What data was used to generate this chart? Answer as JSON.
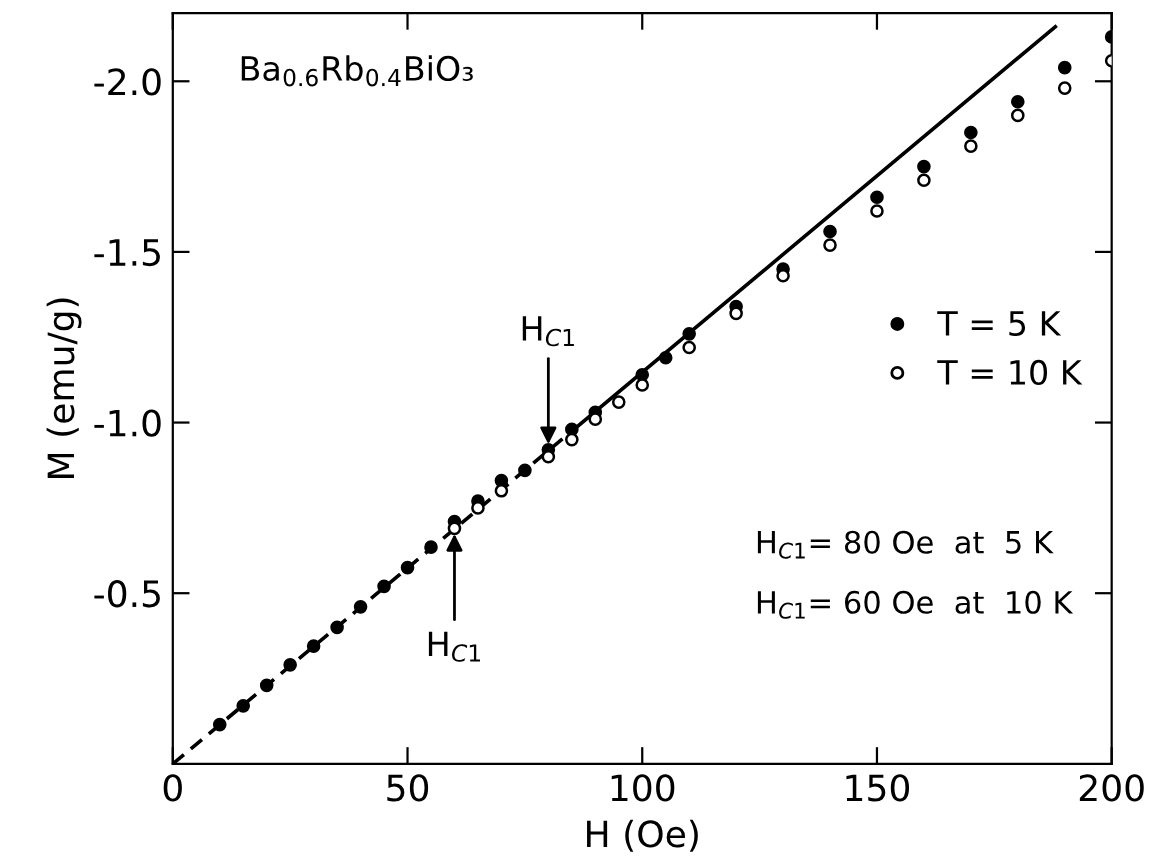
{
  "chart_data": {
    "type": "scatter",
    "xlabel": "H (Oe)",
    "ylabel": "M (emu/g)",
    "xlim": [
      0,
      200
    ],
    "ylim": [
      0,
      -2.2
    ],
    "xticks": [
      0,
      50,
      100,
      150,
      200
    ],
    "yticks": [
      -0.5,
      {
        "value": -1,
        "label": "-1.0"
      },
      -1.5,
      {
        "value": -2,
        "label": "-2.0"
      }
    ],
    "grid": false,
    "legend": "right",
    "series": [
      {
        "name": "T = 5 K",
        "marker": "circle",
        "color": "#000000",
        "x": [
          10,
          15,
          20,
          25,
          30,
          35,
          40,
          45,
          50,
          55,
          60,
          65,
          70,
          75,
          80,
          85,
          90,
          100,
          105,
          110,
          120,
          130,
          140,
          150,
          160,
          170,
          180,
          190,
          200
        ],
        "values": [
          -0.115,
          -0.17,
          -0.23,
          -0.29,
          -0.345,
          -0.4,
          -0.46,
          -0.52,
          -0.575,
          -0.635,
          -0.71,
          -0.77,
          -0.83,
          -0.86,
          -0.92,
          -0.98,
          -1.03,
          -1.14,
          -1.19,
          -1.26,
          -1.34,
          -1.45,
          -1.56,
          -1.66,
          -1.75,
          -1.85,
          -1.94,
          -2.04,
          -2.13
        ]
      },
      {
        "name": "T = 10 K",
        "marker": "circle",
        "color": "#ffffff",
        "x": [
          60,
          65,
          70,
          80,
          85,
          90,
          95,
          100,
          110,
          120,
          130,
          140,
          150,
          160,
          170,
          180,
          190,
          200
        ],
        "values": [
          -0.69,
          -0.75,
          -0.8,
          -0.9,
          -0.95,
          -1.01,
          -1.06,
          -1.11,
          -1.22,
          -1.32,
          -1.43,
          -1.52,
          -1.62,
          -1.71,
          -1.81,
          -1.9,
          -1.98,
          -2.06
        ]
      },
      {
        "type": "line",
        "marker": "none",
        "line_style": "dashed",
        "color": "#000000",
        "x": [
          0,
          85
        ],
        "values": [
          0,
          -0.975
        ]
      },
      {
        "type": "line",
        "marker": "none",
        "line_style": "solid",
        "color": "#000000",
        "x": [
          85,
          188
        ],
        "values": [
          -0.975,
          -2.16
        ]
      }
    ],
    "annotations": [
      "Ba$_{0.6}$Rb$_{0.4}$BiO₃",
      {
        "text": "H$_{C1}$",
        "x": 80,
        "y": -0.92
      },
      {
        "text": "H$_{C1}$",
        "x": 60,
        "y": -0.69
      },
      "H$_{C1}$= 80 Oe  at  5 K",
      "H$_{C1}$= 60 Oe  at  10 K"
    ]
  }
}
